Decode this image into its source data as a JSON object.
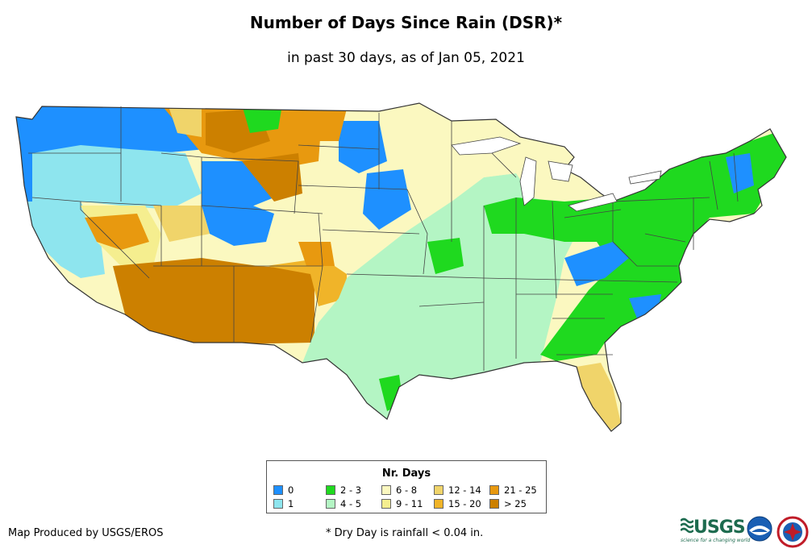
{
  "header": {
    "title": "Number of Days Since Rain (DSR)*",
    "subtitle": "in past 30 days, as of Jan 05, 2021"
  },
  "legend": {
    "title": "Nr. Days",
    "items": [
      {
        "label": "0",
        "color": "#1e90ff"
      },
      {
        "label": "1",
        "color": "#8ee5ee"
      },
      {
        "label": "2 - 3",
        "color": "#1fd91f"
      },
      {
        "label": "4 - 5",
        "color": "#b4f5c4"
      },
      {
        "label": "6 - 8",
        "color": "#fbf8c0"
      },
      {
        "label": "9 - 11",
        "color": "#f5ee8f"
      },
      {
        "label": "12 - 14",
        "color": "#f0d46a"
      },
      {
        "label": "15 - 20",
        "color": "#f0b429"
      },
      {
        "label": "21 - 25",
        "color": "#e8990f"
      },
      {
        "label": "> 25",
        "color": "#cc8000"
      }
    ]
  },
  "footer": {
    "credit": "Map Produced by USGS/EROS",
    "footnote": "* Dry Day is rainfall < 0.04 in.",
    "logos": {
      "usgs": "USGS",
      "usgs_tagline": "science for a changing world"
    }
  }
}
